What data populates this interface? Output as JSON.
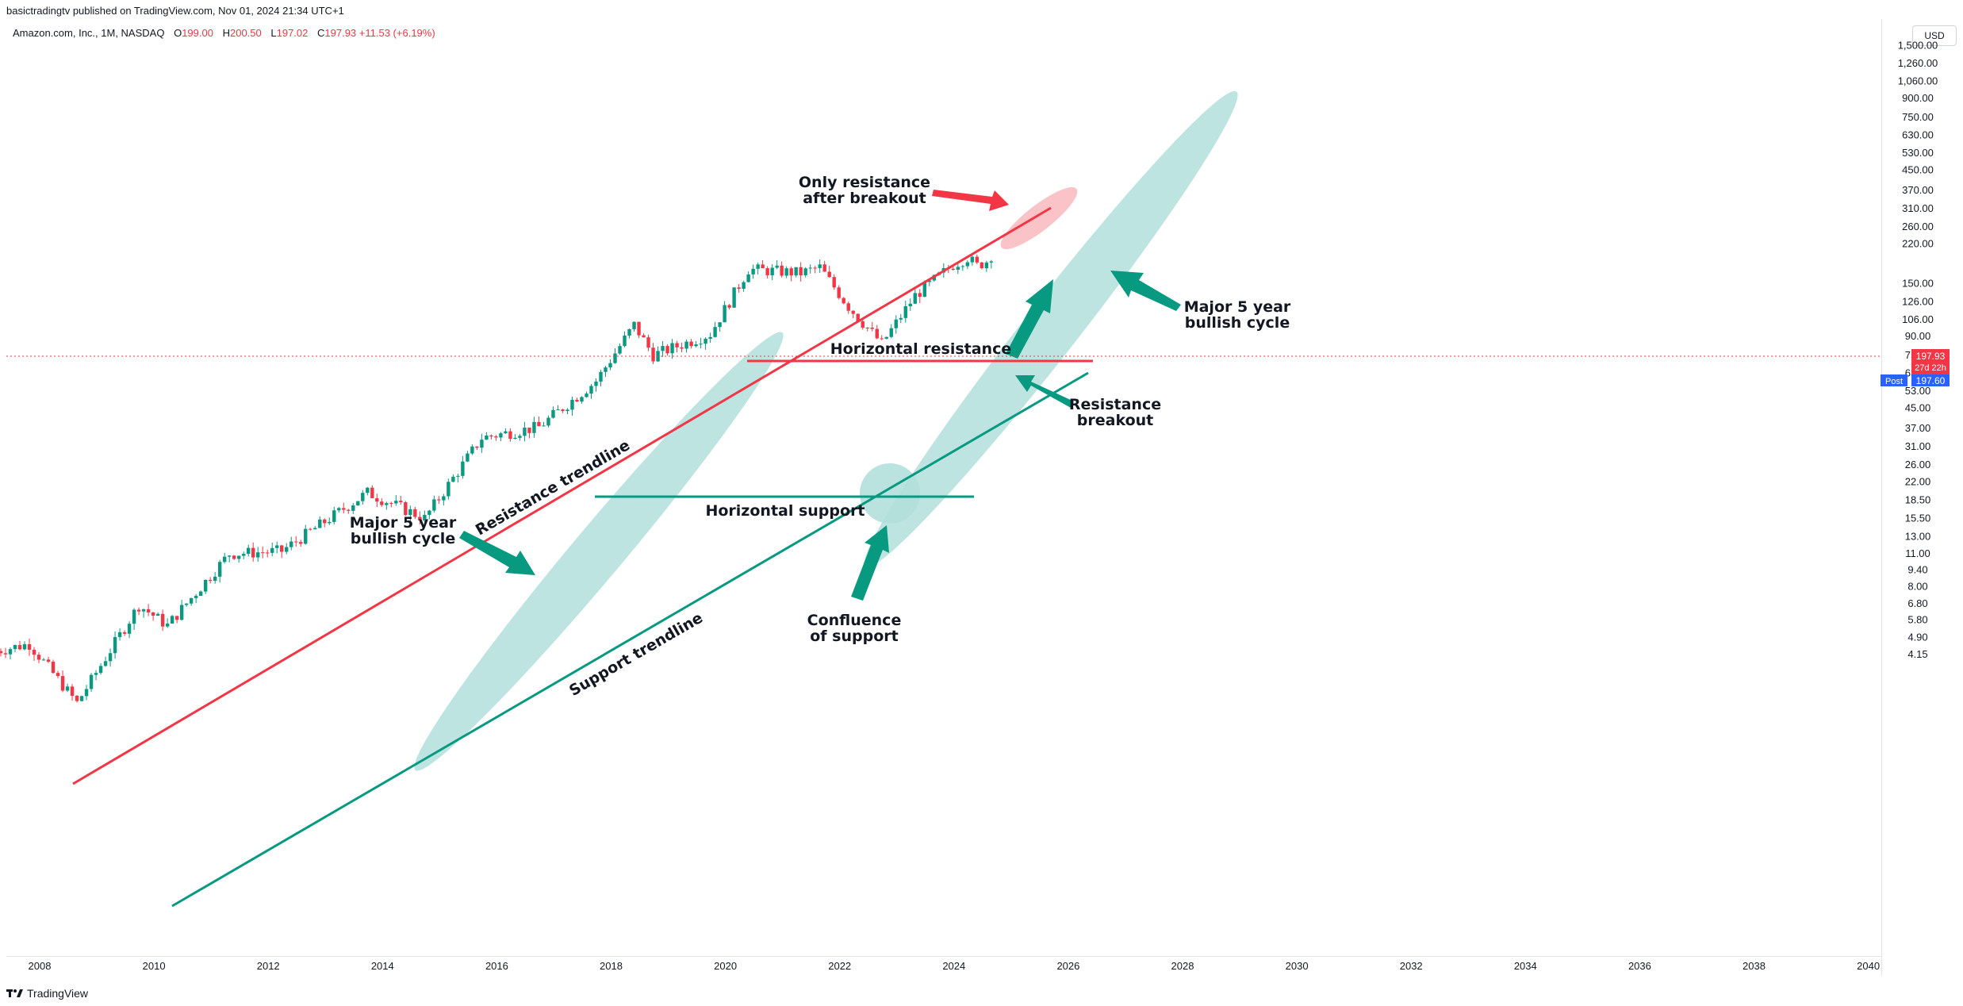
{
  "header": {
    "published": "basictradingtv published on TradingView.com, Nov 01, 2024 21:34 UTC+1",
    "symbol": "Amazon.com, Inc., 1M, NASDAQ",
    "open_label": "O",
    "open": "199.00",
    "high_label": "H",
    "high": "200.50",
    "low_label": "L",
    "low": "197.02",
    "close_label": "C",
    "close": "197.93",
    "change": "+11.53 (+6.19%)"
  },
  "currency": "USD",
  "price_badges": {
    "last": "197.93",
    "countdown": "27d 22h",
    "post_label": "Post",
    "post": "197.60"
  },
  "brand": "TradingView",
  "colors": {
    "bull": "#089981",
    "bear": "#f23645",
    "ellipse_fill": "#b2dfdb",
    "resistance_line": "#f23645",
    "support_line": "#089981"
  },
  "annotations": {
    "only_resistance_1": "Only resistance",
    "only_resistance_2": "after breakout",
    "major_cycle_right_1": "Major 5 year",
    "major_cycle_right_2": "bullish cycle",
    "major_cycle_left_1": "Major 5 year",
    "major_cycle_left_2": "bullish cycle",
    "horizontal_resistance": "Horizontal resistance",
    "resistance_breakout_1": "Resistance",
    "resistance_breakout_2": "breakout",
    "resistance_trendline": "Resistance trendline",
    "horizontal_support": "Horizontal support",
    "support_trendline": "Support trendline",
    "confluence_1": "Confluence",
    "confluence_2": "of support"
  },
  "chart_data": {
    "type": "candlestick",
    "scale": "log",
    "interval": "1M",
    "y_ticks": [
      "1,500.00",
      "1,260.00",
      "1,060.00",
      "900.00",
      "750.00",
      "630.00",
      "530.00",
      "450.00",
      "370.00",
      "310.00",
      "260.00",
      "220.00",
      "150.00",
      "126.00",
      "106.00",
      "90.00",
      "75.00",
      "63.00",
      "53.00",
      "45.00",
      "37.00",
      "31.00",
      "26.00",
      "22.00",
      "18.50",
      "15.50",
      "13.00",
      "11.00",
      "9.40",
      "8.00",
      "6.80",
      "5.80",
      "4.90",
      "4.15"
    ],
    "x_ticks": [
      "2008",
      "2010",
      "2012",
      "2014",
      "2016",
      "2018",
      "2020",
      "2022",
      "2024",
      "2026",
      "2028",
      "2030",
      "2032",
      "2034",
      "2036",
      "2038",
      "2040"
    ],
    "last_price": 197.93,
    "post_market_price": 197.6,
    "series_anchors": [
      {
        "x": "2007-06",
        "close": 4.3
      },
      {
        "x": "2008-01",
        "close": 4.6
      },
      {
        "x": "2008-11",
        "close": 2.6
      },
      {
        "x": "2009-12",
        "close": 6.7
      },
      {
        "x": "2010-06",
        "close": 5.5
      },
      {
        "x": "2011-07",
        "close": 11.0
      },
      {
        "x": "2012-06",
        "close": 11.3
      },
      {
        "x": "2013-12",
        "close": 19.9
      },
      {
        "x": "2014-12",
        "close": 15.5
      },
      {
        "x": "2015-12",
        "close": 33.8
      },
      {
        "x": "2016-12",
        "close": 37.5
      },
      {
        "x": "2017-12",
        "close": 58.5
      },
      {
        "x": "2018-08",
        "close": 100.6
      },
      {
        "x": "2018-12",
        "close": 75.1
      },
      {
        "x": "2019-12",
        "close": 92.4
      },
      {
        "x": "2020-08",
        "close": 172.5
      },
      {
        "x": "2021-07",
        "close": 166.4
      },
      {
        "x": "2021-11",
        "close": 175.4
      },
      {
        "x": "2022-05",
        "close": 120.2
      },
      {
        "x": "2022-12",
        "close": 84.0
      },
      {
        "x": "2023-07",
        "close": 133.7
      },
      {
        "x": "2024-03",
        "close": 180.4
      },
      {
        "x": "2024-06",
        "close": 193.3
      },
      {
        "x": "2024-08",
        "close": 178.5
      },
      {
        "x": "2024-10",
        "close": 186.4
      },
      {
        "x": "2024-11",
        "close": 197.93
      }
    ]
  }
}
